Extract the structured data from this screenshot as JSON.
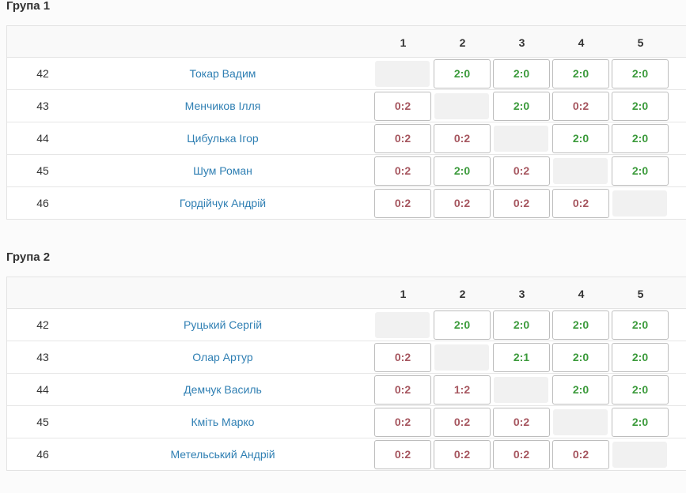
{
  "groups": [
    {
      "title": "Група 1",
      "columns": [
        "1",
        "2",
        "3",
        "4",
        "5"
      ],
      "rows": [
        {
          "num": "42",
          "name": "Токар Вадим",
          "cells": [
            "",
            "2:0",
            "2:0",
            "2:0",
            "2:0"
          ]
        },
        {
          "num": "43",
          "name": "Менчиков Ілля",
          "cells": [
            "0:2",
            "",
            "2:0",
            "0:2",
            "2:0"
          ]
        },
        {
          "num": "44",
          "name": "Цибулька Ігор",
          "cells": [
            "0:2",
            "0:2",
            "",
            "2:0",
            "2:0"
          ]
        },
        {
          "num": "45",
          "name": "Шум Роман",
          "cells": [
            "0:2",
            "2:0",
            "0:2",
            "",
            "2:0"
          ]
        },
        {
          "num": "46",
          "name": "Гордійчук Андрій",
          "cells": [
            "0:2",
            "0:2",
            "0:2",
            "0:2",
            ""
          ]
        }
      ]
    },
    {
      "title": "Група 2",
      "columns": [
        "1",
        "2",
        "3",
        "4",
        "5"
      ],
      "rows": [
        {
          "num": "42",
          "name": "Руцький Сергій",
          "cells": [
            "",
            "2:0",
            "2:0",
            "2:0",
            "2:0"
          ]
        },
        {
          "num": "43",
          "name": "Олар Артур",
          "cells": [
            "0:2",
            "",
            "2:1",
            "2:0",
            "2:0"
          ]
        },
        {
          "num": "44",
          "name": "Демчук Василь",
          "cells": [
            "0:2",
            "1:2",
            "",
            "2:0",
            "2:0"
          ]
        },
        {
          "num": "45",
          "name": "Кміть Марко",
          "cells": [
            "0:2",
            "0:2",
            "0:2",
            "",
            "2:0"
          ]
        },
        {
          "num": "46",
          "name": "Метельський Андрій",
          "cells": [
            "0:2",
            "0:2",
            "0:2",
            "0:2",
            ""
          ]
        }
      ]
    }
  ],
  "colors": {
    "win": "#3b9a3b",
    "loss": "#a6565f",
    "link": "#2f7fb3"
  }
}
